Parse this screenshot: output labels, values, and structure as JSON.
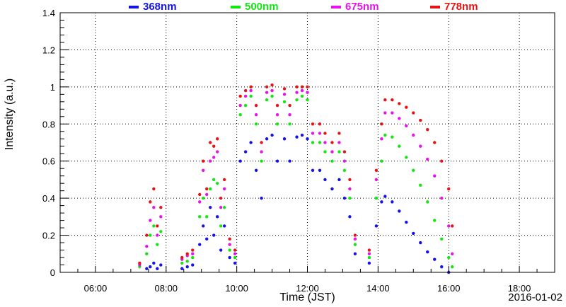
{
  "chart_data": {
    "type": "scatter",
    "xlabel": "Time (JST)",
    "ylabel": "Intensity (a.u.)",
    "date_label": "2016-01-02",
    "x_unit": "hour",
    "xlim": [
      5.0,
      19.0
    ],
    "ylim": [
      0,
      1.4
    ],
    "x_ticks": [
      6,
      8,
      10,
      12,
      14,
      16,
      18
    ],
    "x_tick_labels": [
      "06:00",
      "08:00",
      "10:00",
      "12:00",
      "14:00",
      "16:00",
      "18:00"
    ],
    "y_ticks": [
      0,
      0.2,
      0.4,
      0.6,
      0.8,
      1.0,
      1.2,
      1.4
    ],
    "y_tick_labels": [
      "0",
      "0.2",
      "0.4",
      "0.6",
      "0.8",
      "1",
      "1.2",
      "1.4"
    ],
    "grid": true,
    "legend_position": "top",
    "series": [
      {
        "name": "368nm",
        "color": "#1414e6",
        "points": [
          [
            7.45,
            0.02
          ],
          [
            7.55,
            0.03
          ],
          [
            7.65,
            0.05
          ],
          [
            7.75,
            0.02
          ],
          [
            7.85,
            0.04
          ],
          [
            8.45,
            0.02
          ],
          [
            8.6,
            0.03
          ],
          [
            8.75,
            0.04
          ],
          [
            8.95,
            0.15
          ],
          [
            9.05,
            0.25
          ],
          [
            9.15,
            0.18
          ],
          [
            9.25,
            0.35
          ],
          [
            9.35,
            0.2
          ],
          [
            9.45,
            0.3
          ],
          [
            9.55,
            0.12
          ],
          [
            9.65,
            0.25
          ],
          [
            9.8,
            0.08
          ],
          [
            9.95,
            0.05
          ],
          [
            10.1,
            0.6
          ],
          [
            10.25,
            0.65
          ],
          [
            10.4,
            0.7
          ],
          [
            10.55,
            0.55
          ],
          [
            10.7,
            0.4
          ],
          [
            10.85,
            0.72
          ],
          [
            11.0,
            0.74
          ],
          [
            11.15,
            0.6
          ],
          [
            11.35,
            0.72
          ],
          [
            11.5,
            0.6
          ],
          [
            11.7,
            0.73
          ],
          [
            11.85,
            0.74
          ],
          [
            12.0,
            0.72
          ],
          [
            12.15,
            0.55
          ],
          [
            12.35,
            0.55
          ],
          [
            12.5,
            0.5
          ],
          [
            12.7,
            0.45
          ],
          [
            12.9,
            0.5
          ],
          [
            13.05,
            0.4
          ],
          [
            13.2,
            0.3
          ],
          [
            13.35,
            0.1
          ],
          [
            13.75,
            0.05
          ],
          [
            13.95,
            0.25
          ],
          [
            14.1,
            0.38
          ],
          [
            14.2,
            0.41
          ],
          [
            14.4,
            0.38
          ],
          [
            14.6,
            0.33
          ],
          [
            14.8,
            0.27
          ],
          [
            15.0,
            0.21
          ],
          [
            15.2,
            0.16
          ],
          [
            15.4,
            0.11
          ],
          [
            15.6,
            0.07
          ],
          [
            15.8,
            0.03
          ],
          [
            16.0,
            0.0
          ]
        ]
      },
      {
        "name": "500nm",
        "color": "#14e614",
        "points": [
          [
            7.25,
            0.03
          ],
          [
            7.45,
            0.1
          ],
          [
            7.55,
            0.2
          ],
          [
            7.65,
            0.25
          ],
          [
            7.75,
            0.15
          ],
          [
            7.85,
            0.22
          ],
          [
            8.45,
            0.05
          ],
          [
            8.6,
            0.06
          ],
          [
            8.75,
            0.08
          ],
          [
            8.95,
            0.3
          ],
          [
            9.05,
            0.4
          ],
          [
            9.15,
            0.3
          ],
          [
            9.25,
            0.45
          ],
          [
            9.35,
            0.5
          ],
          [
            9.45,
            0.48
          ],
          [
            9.55,
            0.25
          ],
          [
            9.65,
            0.35
          ],
          [
            9.8,
            0.12
          ],
          [
            9.95,
            0.08
          ],
          [
            10.1,
            0.85
          ],
          [
            10.25,
            0.9
          ],
          [
            10.4,
            0.95
          ],
          [
            10.55,
            0.8
          ],
          [
            10.7,
            0.6
          ],
          [
            10.85,
            0.93
          ],
          [
            11.0,
            0.95
          ],
          [
            11.15,
            0.8
          ],
          [
            11.35,
            0.92
          ],
          [
            11.5,
            0.8
          ],
          [
            11.7,
            0.93
          ],
          [
            11.85,
            0.95
          ],
          [
            12.0,
            0.93
          ],
          [
            12.15,
            0.7
          ],
          [
            12.35,
            0.7
          ],
          [
            12.5,
            0.65
          ],
          [
            12.7,
            0.6
          ],
          [
            12.9,
            0.65
          ],
          [
            13.05,
            0.55
          ],
          [
            13.2,
            0.4
          ],
          [
            13.35,
            0.15
          ],
          [
            13.75,
            0.08
          ],
          [
            13.95,
            0.4
          ],
          [
            14.1,
            0.6
          ],
          [
            14.2,
            0.74
          ],
          [
            14.4,
            0.73
          ],
          [
            14.6,
            0.68
          ],
          [
            14.8,
            0.62
          ],
          [
            15.0,
            0.55
          ],
          [
            15.2,
            0.47
          ],
          [
            15.4,
            0.38
          ],
          [
            15.6,
            0.28
          ],
          [
            15.8,
            0.18
          ],
          [
            16.0,
            0.08
          ],
          [
            16.1,
            0.03
          ]
        ]
      },
      {
        "name": "675nm",
        "color": "#e614e6",
        "points": [
          [
            7.25,
            0.04
          ],
          [
            7.45,
            0.14
          ],
          [
            7.55,
            0.28
          ],
          [
            7.65,
            0.35
          ],
          [
            7.75,
            0.2
          ],
          [
            7.85,
            0.3
          ],
          [
            8.45,
            0.07
          ],
          [
            8.6,
            0.09
          ],
          [
            8.75,
            0.1
          ],
          [
            8.95,
            0.38
          ],
          [
            9.05,
            0.55
          ],
          [
            9.15,
            0.42
          ],
          [
            9.25,
            0.6
          ],
          [
            9.35,
            0.62
          ],
          [
            9.45,
            0.65
          ],
          [
            9.55,
            0.35
          ],
          [
            9.65,
            0.45
          ],
          [
            9.8,
            0.15
          ],
          [
            9.95,
            0.1
          ],
          [
            10.1,
            0.9
          ],
          [
            10.25,
            0.95
          ],
          [
            10.4,
            0.98
          ],
          [
            10.55,
            0.85
          ],
          [
            10.7,
            0.65
          ],
          [
            10.85,
            0.97
          ],
          [
            11.0,
            0.98
          ],
          [
            11.15,
            0.85
          ],
          [
            11.35,
            0.96
          ],
          [
            11.5,
            0.85
          ],
          [
            11.7,
            0.97
          ],
          [
            11.85,
            0.98
          ],
          [
            12.0,
            0.97
          ],
          [
            12.15,
            0.75
          ],
          [
            12.35,
            0.75
          ],
          [
            12.5,
            0.7
          ],
          [
            12.7,
            0.65
          ],
          [
            12.9,
            0.7
          ],
          [
            13.05,
            0.6
          ],
          [
            13.2,
            0.45
          ],
          [
            13.35,
            0.18
          ],
          [
            13.75,
            0.1
          ],
          [
            13.95,
            0.5
          ],
          [
            14.1,
            0.72
          ],
          [
            14.2,
            0.86
          ],
          [
            14.4,
            0.86
          ],
          [
            14.6,
            0.83
          ],
          [
            14.8,
            0.79
          ],
          [
            15.0,
            0.74
          ],
          [
            15.2,
            0.68
          ],
          [
            15.4,
            0.61
          ],
          [
            15.6,
            0.52
          ],
          [
            15.8,
            0.4
          ],
          [
            16.0,
            0.25
          ],
          [
            16.1,
            0.1
          ]
        ]
      },
      {
        "name": "778nm",
        "color": "#e61414",
        "points": [
          [
            7.25,
            0.05
          ],
          [
            7.45,
            0.2
          ],
          [
            7.55,
            0.38
          ],
          [
            7.65,
            0.45
          ],
          [
            7.75,
            0.25
          ],
          [
            7.85,
            0.35
          ],
          [
            8.45,
            0.08
          ],
          [
            8.6,
            0.1
          ],
          [
            8.75,
            0.12
          ],
          [
            8.95,
            0.42
          ],
          [
            9.05,
            0.6
          ],
          [
            9.15,
            0.45
          ],
          [
            9.25,
            0.7
          ],
          [
            9.35,
            0.68
          ],
          [
            9.45,
            0.72
          ],
          [
            9.55,
            0.4
          ],
          [
            9.65,
            0.5
          ],
          [
            9.8,
            0.18
          ],
          [
            9.95,
            0.12
          ],
          [
            10.1,
            0.95
          ],
          [
            10.25,
            0.98
          ],
          [
            10.4,
            1.0
          ],
          [
            10.55,
            0.9
          ],
          [
            10.7,
            0.7
          ],
          [
            10.85,
            1.0
          ],
          [
            11.0,
            1.01
          ],
          [
            11.15,
            0.9
          ],
          [
            11.35,
            0.99
          ],
          [
            11.5,
            0.9
          ],
          [
            11.7,
            1.0
          ],
          [
            11.85,
            1.0
          ],
          [
            12.0,
            1.0
          ],
          [
            12.15,
            0.8
          ],
          [
            12.35,
            0.8
          ],
          [
            12.5,
            0.75
          ],
          [
            12.7,
            0.7
          ],
          [
            12.9,
            0.75
          ],
          [
            13.05,
            0.65
          ],
          [
            13.2,
            0.5
          ],
          [
            13.35,
            0.2
          ],
          [
            13.75,
            0.12
          ],
          [
            13.95,
            0.55
          ],
          [
            14.1,
            0.8
          ],
          [
            14.2,
            0.93
          ],
          [
            14.4,
            0.93
          ],
          [
            14.6,
            0.91
          ],
          [
            14.8,
            0.89
          ],
          [
            15.0,
            0.86
          ],
          [
            15.2,
            0.82
          ],
          [
            15.4,
            0.77
          ],
          [
            15.6,
            0.7
          ],
          [
            15.8,
            0.6
          ],
          [
            16.0,
            0.45
          ],
          [
            16.1,
            0.25
          ]
        ]
      }
    ]
  }
}
